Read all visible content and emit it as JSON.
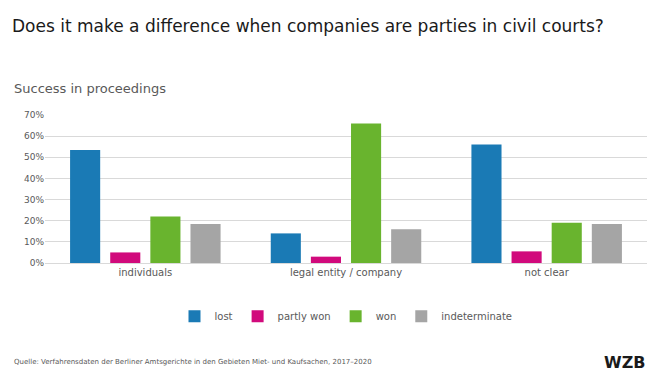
{
  "chart_data": {
    "type": "bar",
    "title": "Does it make a difference when companies are parties in civil courts?",
    "subtitle": "Success in proceedings",
    "source": "Quelle: Verfahrensdaten der Berliner Amtsgerichte in den Gebieten Miet- und Kaufsachen, 2017–2020",
    "logo": "WZB",
    "categories": [
      "individuals",
      "legal entity / company",
      "not clear"
    ],
    "series": [
      {
        "name": "lost",
        "color": "#1a7ab5",
        "values": [
          53.5,
          14,
          56
        ]
      },
      {
        "name": "partly won",
        "color": "#d10a7c",
        "values": [
          5,
          3,
          5.5
        ]
      },
      {
        "name": "won",
        "color": "#69b42e",
        "values": [
          22,
          66,
          19
        ]
      },
      {
        "name": "indeterminate",
        "color": "#a5a5a5",
        "values": [
          18.5,
          16,
          18.5
        ]
      }
    ],
    "ylim": [
      0,
      70
    ],
    "yticks": [
      {
        "value": 0,
        "label": "0%"
      },
      {
        "value": 10,
        "label": "10%"
      },
      {
        "value": 20,
        "label": "20%"
      },
      {
        "value": 30,
        "label": "30%"
      },
      {
        "value": 40,
        "label": "40%"
      },
      {
        "value": 50,
        "label": "50%"
      },
      {
        "value": 60,
        "label": "60%"
      },
      {
        "value": 70,
        "label": "70%"
      }
    ],
    "grid": true,
    "legend": "bottom"
  }
}
